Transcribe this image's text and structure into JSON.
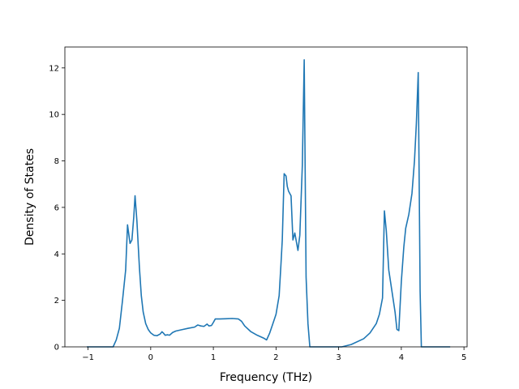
{
  "chart_data": {
    "type": "line",
    "title": "",
    "xlabel": "Frequency (THz)",
    "ylabel": "Density of States",
    "xlim": [
      -1.37,
      5.05
    ],
    "ylim": [
      0,
      12.9
    ],
    "xticks": [
      -1,
      0,
      1,
      2,
      3,
      4,
      5
    ],
    "yticks": [
      0,
      2,
      4,
      6,
      8,
      10,
      12
    ],
    "grid": false,
    "legend": "none",
    "series": [
      {
        "color": "#1f77b4",
        "points": [
          [
            -1.02,
            0
          ],
          [
            -0.6,
            0
          ],
          [
            -0.55,
            0.3
          ],
          [
            -0.5,
            0.8
          ],
          [
            -0.45,
            2.0
          ],
          [
            -0.4,
            3.3
          ],
          [
            -0.37,
            5.25
          ],
          [
            -0.33,
            4.45
          ],
          [
            -0.3,
            4.6
          ],
          [
            -0.27,
            5.6
          ],
          [
            -0.25,
            6.5
          ],
          [
            -0.22,
            5.4
          ],
          [
            -0.18,
            3.4
          ],
          [
            -0.15,
            2.2
          ],
          [
            -0.12,
            1.5
          ],
          [
            -0.08,
            1.0
          ],
          [
            -0.04,
            0.75
          ],
          [
            0.0,
            0.6
          ],
          [
            0.05,
            0.5
          ],
          [
            0.1,
            0.48
          ],
          [
            0.15,
            0.55
          ],
          [
            0.18,
            0.65
          ],
          [
            0.2,
            0.6
          ],
          [
            0.23,
            0.5
          ],
          [
            0.27,
            0.52
          ],
          [
            0.3,
            0.5
          ],
          [
            0.35,
            0.62
          ],
          [
            0.4,
            0.68
          ],
          [
            0.5,
            0.74
          ],
          [
            0.6,
            0.8
          ],
          [
            0.7,
            0.85
          ],
          [
            0.75,
            0.94
          ],
          [
            0.8,
            0.9
          ],
          [
            0.85,
            0.88
          ],
          [
            0.9,
            0.98
          ],
          [
            0.93,
            0.9
          ],
          [
            0.97,
            0.92
          ],
          [
            1.0,
            1.05
          ],
          [
            1.03,
            1.2
          ],
          [
            1.1,
            1.2
          ],
          [
            1.2,
            1.21
          ],
          [
            1.3,
            1.22
          ],
          [
            1.4,
            1.2
          ],
          [
            1.45,
            1.1
          ],
          [
            1.5,
            0.9
          ],
          [
            1.6,
            0.65
          ],
          [
            1.7,
            0.5
          ],
          [
            1.8,
            0.38
          ],
          [
            1.85,
            0.3
          ],
          [
            1.9,
            0.6
          ],
          [
            1.95,
            1.0
          ],
          [
            2.0,
            1.4
          ],
          [
            2.05,
            2.2
          ],
          [
            2.08,
            3.6
          ],
          [
            2.1,
            4.6
          ],
          [
            2.13,
            7.45
          ],
          [
            2.16,
            7.35
          ],
          [
            2.18,
            6.9
          ],
          [
            2.2,
            6.7
          ],
          [
            2.24,
            6.5
          ],
          [
            2.27,
            4.6
          ],
          [
            2.3,
            4.9
          ],
          [
            2.35,
            4.15
          ],
          [
            2.38,
            4.8
          ],
          [
            2.42,
            7.8
          ],
          [
            2.45,
            12.35
          ],
          [
            2.48,
            3.0
          ],
          [
            2.51,
            1.0
          ],
          [
            2.54,
            0
          ],
          [
            3.05,
            0
          ],
          [
            3.2,
            0.1
          ],
          [
            3.4,
            0.35
          ],
          [
            3.5,
            0.6
          ],
          [
            3.6,
            1.0
          ],
          [
            3.65,
            1.4
          ],
          [
            3.7,
            2.1
          ],
          [
            3.73,
            5.85
          ],
          [
            3.76,
            5.0
          ],
          [
            3.8,
            3.3
          ],
          [
            3.85,
            2.4
          ],
          [
            3.9,
            1.5
          ],
          [
            3.93,
            0.75
          ],
          [
            3.96,
            0.7
          ],
          [
            4.0,
            2.8
          ],
          [
            4.04,
            4.3
          ],
          [
            4.07,
            5.1
          ],
          [
            4.12,
            5.7
          ],
          [
            4.17,
            6.6
          ],
          [
            4.21,
            8.0
          ],
          [
            4.24,
            9.6
          ],
          [
            4.27,
            11.8
          ],
          [
            4.3,
            2.4
          ],
          [
            4.32,
            0
          ],
          [
            4.78,
            0
          ]
        ]
      }
    ]
  }
}
